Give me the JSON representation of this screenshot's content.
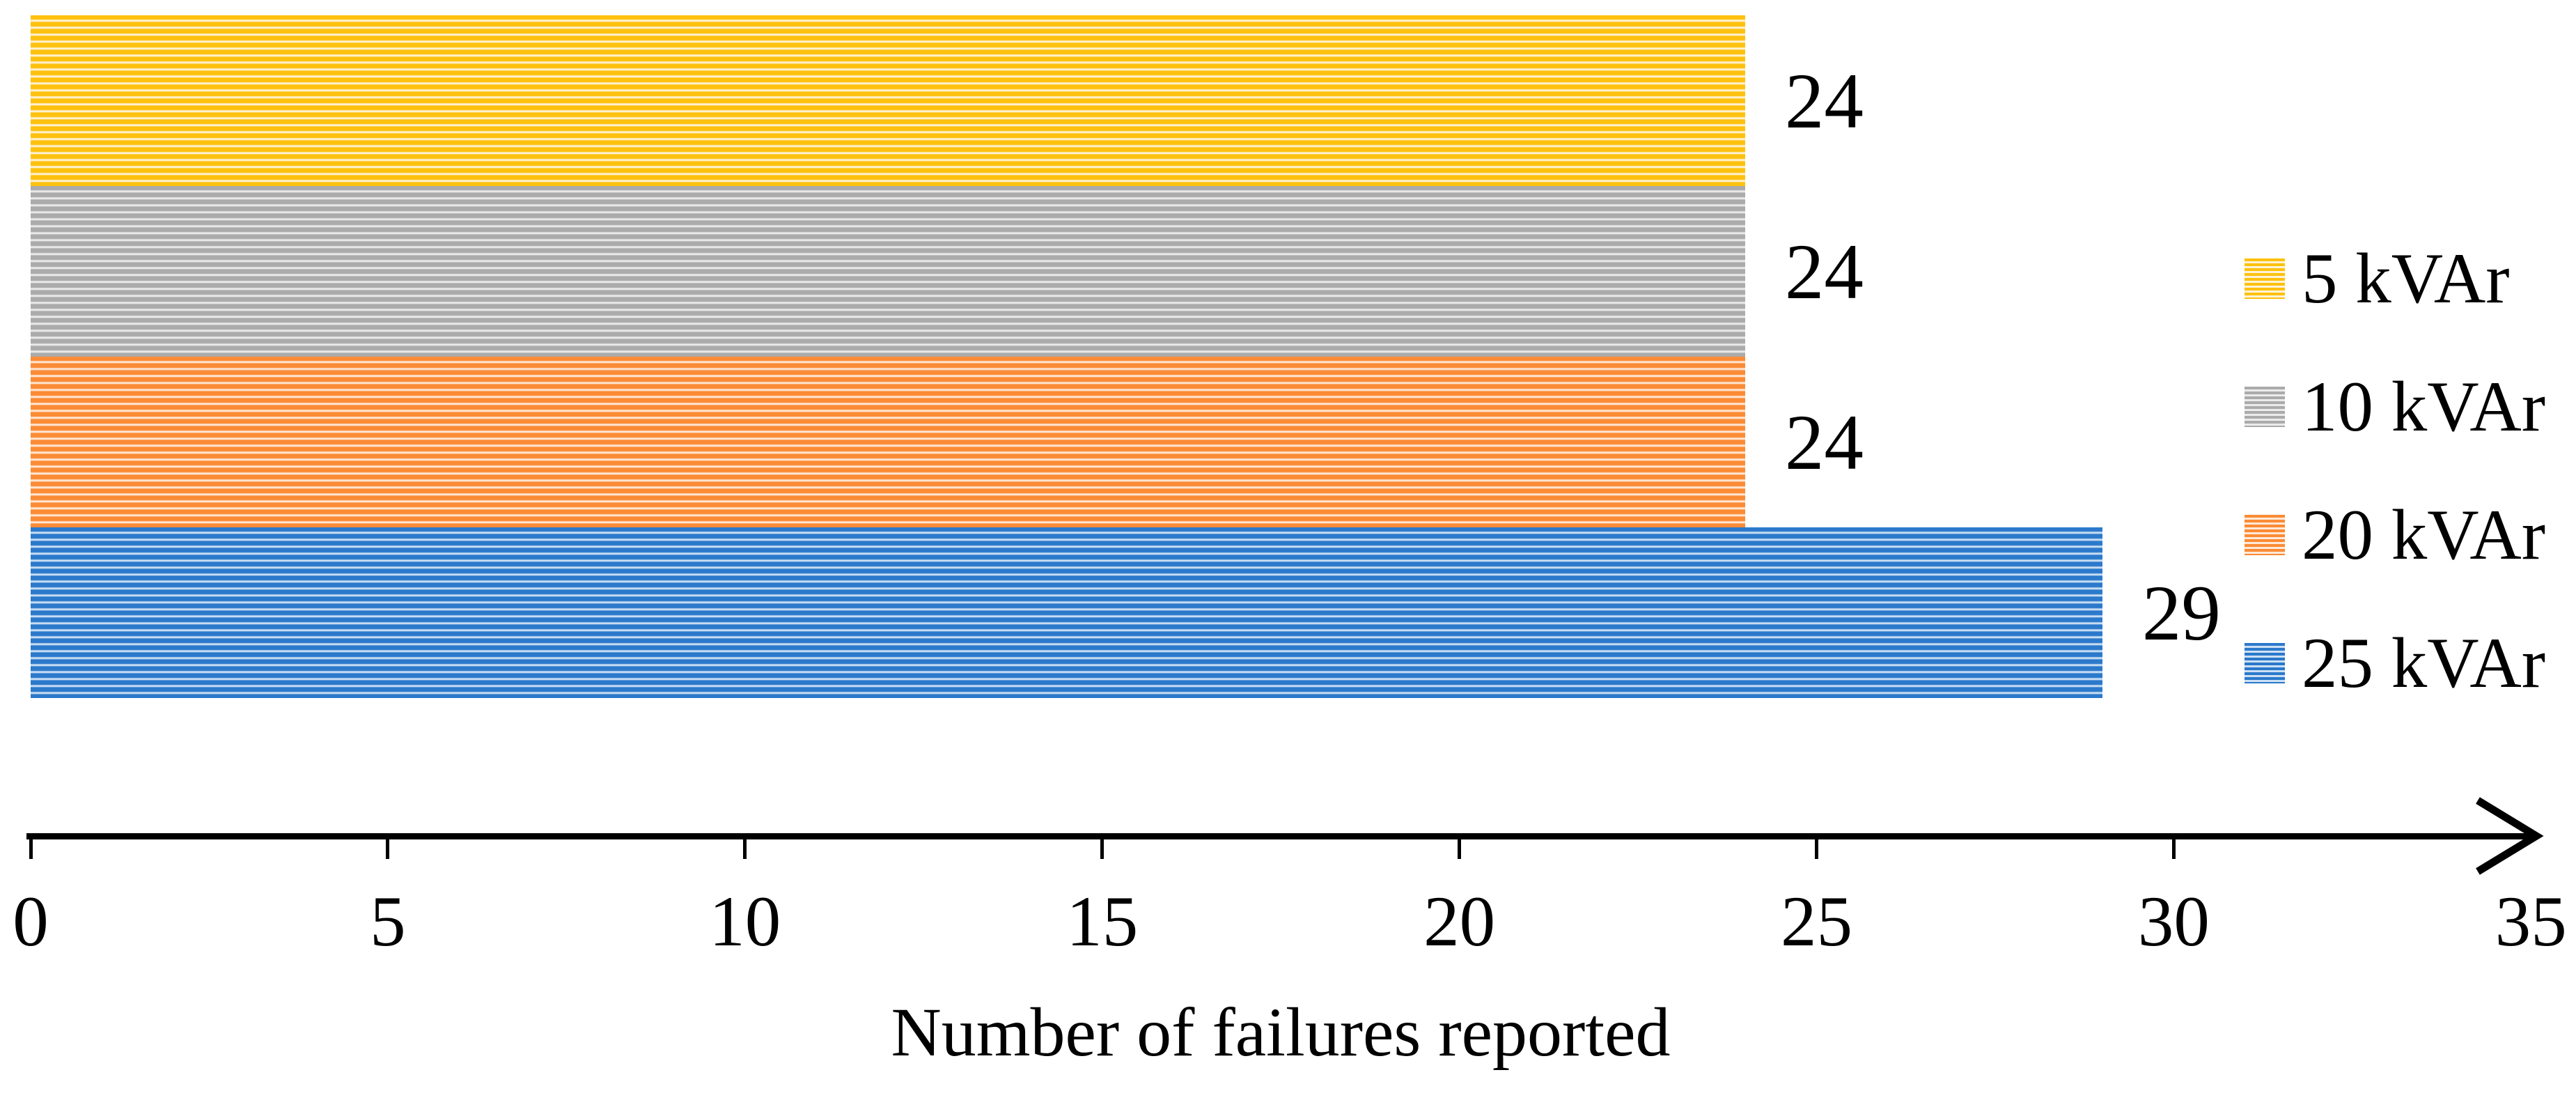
{
  "chart_data": {
    "type": "bar",
    "orientation": "horizontal",
    "title": "",
    "xlabel": "Number of failures reported",
    "ylabel": "",
    "xlim": [
      0,
      35
    ],
    "xticks": [
      0,
      5,
      10,
      15,
      20,
      25,
      30,
      35
    ],
    "grid": false,
    "axis_arrow": true,
    "pattern": "horizontal-stripes",
    "legend_position": "right",
    "categories": [
      "5 kVAr",
      "10 kVAr",
      "20 kVAr",
      "25 kVAr"
    ],
    "series": [
      {
        "name": "5 kVAr",
        "value": 24,
        "data_label": "24",
        "color": "#FDC10E",
        "stripe_color": "#FEF3D8"
      },
      {
        "name": "10 kVAr",
        "value": 24,
        "data_label": "24",
        "color": "#ABABAB",
        "stripe_color": "#EBEBEB"
      },
      {
        "name": "20 kVAr",
        "value": 24,
        "data_label": "24",
        "color": "#FB8B35",
        "stripe_color": "#FEE9D8"
      },
      {
        "name": "25 kVAr",
        "value": 29,
        "data_label": "29",
        "color": "#2B79CB",
        "stripe_color": "#CDE0F4"
      }
    ],
    "values": [
      24,
      24,
      24,
      29
    ],
    "axis_color": "#000000",
    "text_color": "#000000"
  }
}
